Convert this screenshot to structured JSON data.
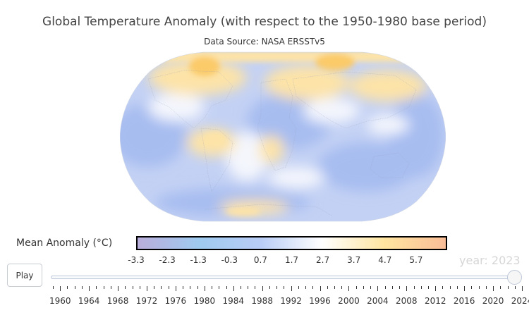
{
  "title": "Global Temperature Anomaly (with respect to the 1950-1980 base period)",
  "subtitle": "Data Source: NASA ERSSTv5",
  "colorbar": {
    "title": "Mean Anomaly (°C)",
    "ticks": [
      "-3.3",
      "-2.3",
      "-1.3",
      "-0.3",
      "0.7",
      "1.7",
      "2.7",
      "3.7",
      "4.7",
      "5.7"
    ],
    "range": [
      -3.3,
      6.7
    ],
    "colors": [
      "#b9aedb",
      "#9fcaf0",
      "#b9cdf6",
      "#ffffff",
      "#ffe5a0",
      "#f9bd97"
    ]
  },
  "palette": {
    "ocean_base": "#c3d1f4",
    "cool_blue": "#a7bdf0",
    "warm_yellow": "#fde3a7",
    "hot_orange": "#fbcb6a"
  },
  "animation": {
    "play_label": "Play",
    "current_year_label": "year: 2023",
    "current_year": 2023,
    "year_ticks": [
      "1960",
      "1964",
      "1968",
      "1972",
      "1976",
      "1980",
      "1984",
      "1988",
      "1992",
      "1996",
      "2000",
      "2004",
      "2008",
      "2012",
      "2016",
      "2020",
      "2024"
    ],
    "year_min": 1959,
    "year_max": 2024
  }
}
